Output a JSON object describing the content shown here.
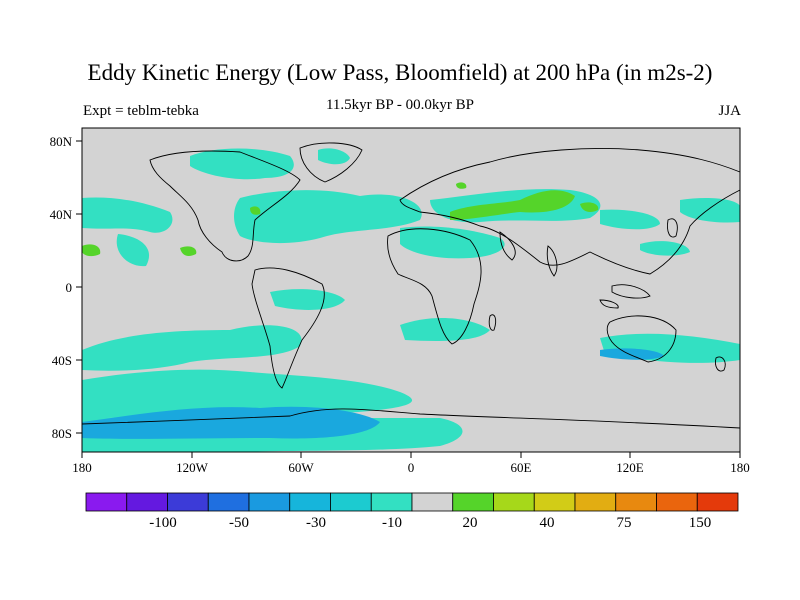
{
  "title": "Eddy Kinetic Energy (Low Pass, Bloomfield) at 200 hPa (in m2s-2)",
  "subtitle": "11.5kyr BP - 00.0kyr BP",
  "left_label": "Expt = teblm-tebka",
  "right_label": "JJA",
  "colors": {
    "background": "#d3d3d3",
    "coast": "#000000",
    "cyan_light": "#33e0c2",
    "blue_med": "#1aa8de",
    "green": "#55d42a"
  },
  "x_ticks": [
    "180",
    "120W",
    "60W",
    "0",
    "60E",
    "120E",
    "180"
  ],
  "y_ticks": [
    "80N",
    "40N",
    "0",
    "40S",
    "80S"
  ],
  "colorbar": {
    "colors": [
      "#8a1aef",
      "#6419e0",
      "#3c3bd8",
      "#1f6fe0",
      "#1a9ae0",
      "#16b5db",
      "#1ccbd0",
      "#33e0c2",
      "#d3d3d3",
      "#55d42a",
      "#a6d81a",
      "#d2cc17",
      "#e2ad12",
      "#e8890f",
      "#ea650d",
      "#e43a0b"
    ],
    "labels": [
      "-100",
      "-50",
      "-30",
      "-10",
      "20",
      "40",
      "75",
      "150"
    ]
  }
}
